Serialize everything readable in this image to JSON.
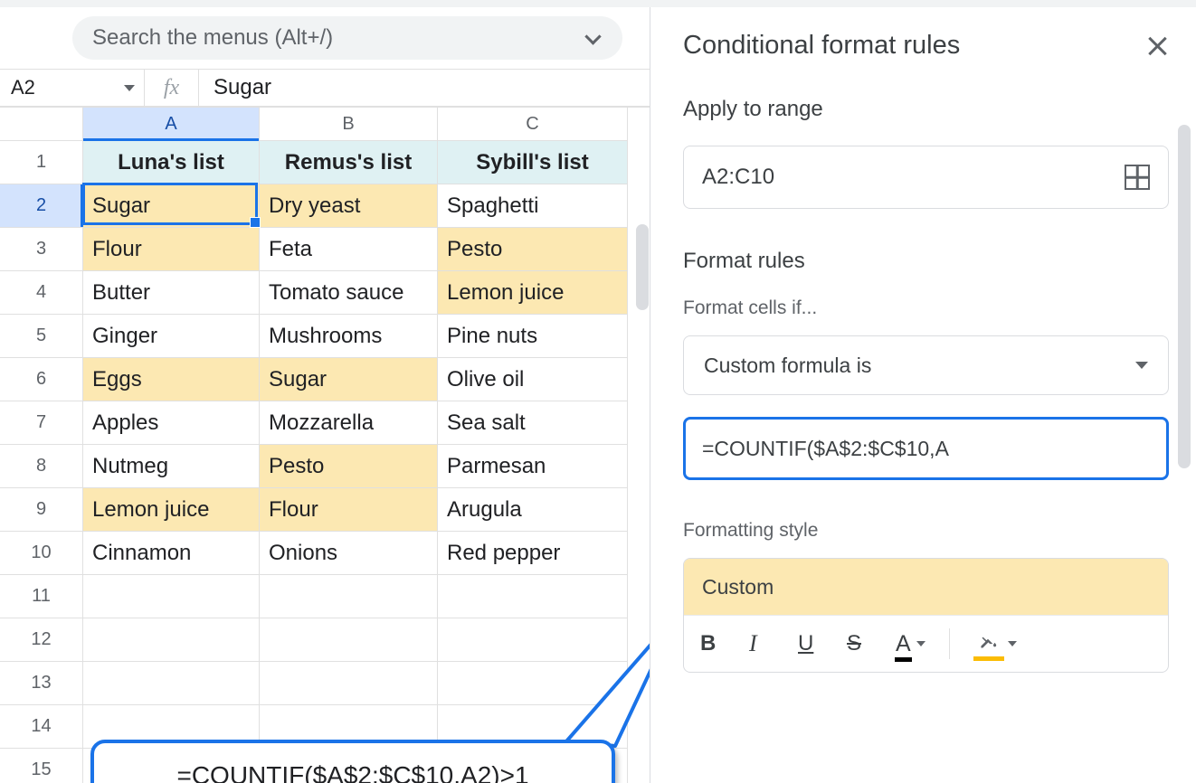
{
  "search": {
    "placeholder": "Search the menus (Alt+/)"
  },
  "name_box": "A2",
  "fx_label": "fx",
  "formula_bar": "Sugar",
  "columns": [
    "A",
    "B",
    "C"
  ],
  "selected_column_idx": 0,
  "selected_row_idx": 1,
  "row_count": 15,
  "header_row": [
    "Luna's list",
    "Remus's list",
    "Sybill's list"
  ],
  "data_rows": [
    [
      "Sugar",
      "Dry yeast",
      "Spaghetti"
    ],
    [
      "Flour",
      "Feta",
      "Pesto"
    ],
    [
      "Butter",
      "Tomato sauce",
      "Lemon juice"
    ],
    [
      "Ginger",
      "Mushrooms",
      "Pine nuts"
    ],
    [
      "Eggs",
      "Sugar",
      "Olive oil"
    ],
    [
      "Apples",
      "Mozzarella",
      "Sea salt"
    ],
    [
      "Nutmeg",
      "Pesto",
      "Parmesan"
    ],
    [
      "Lemon juice",
      "Flour",
      "Arugula"
    ],
    [
      "Cinnamon",
      "Onions",
      "Red pepper"
    ]
  ],
  "highlight_cells": [
    [
      0,
      0
    ],
    [
      0,
      1
    ],
    [
      0,
      2
    ],
    [
      0,
      4
    ],
    [
      1,
      0
    ],
    [
      1,
      2
    ],
    [
      1,
      3
    ],
    [
      2,
      0
    ],
    [
      0,
      7
    ],
    [
      1,
      5
    ],
    [
      1,
      7
    ],
    [
      2,
      2
    ],
    [
      2,
      3
    ]
  ],
  "highlight_map": {
    "0-0": true,
    "1-0": true,
    "0-1": true,
    "2-1": true,
    "2-2": true,
    "0-4": true,
    "1-4": true,
    "1-6": true,
    "0-7": true,
    "1-7": true
  },
  "highlight_color": "#fce8b2",
  "header_row_bg": "#d9ecee",
  "active_cell": {
    "col": 0,
    "row": 1
  },
  "callout_formula": "=COUNTIF($A$2:$C$10,A2)>1",
  "callout_border_color": "#1a73e8",
  "panel": {
    "title": "Conditional format rules",
    "apply_label": "Apply to range",
    "range_value": "A2:C10",
    "format_rules_label": "Format rules",
    "format_cells_if_label": "Format cells if...",
    "condition_value": "Custom formula is",
    "formula_value": "=COUNTIF($A$2:$C$10,A",
    "formatting_style_label": "Formatting style",
    "style_preview_label": "Custom",
    "style_preview_bg": "#fce8b2",
    "fill_underline_color": "#fbbc04",
    "toolbar": {
      "bold": "B",
      "italic": "I",
      "underline": "U",
      "strike": "S",
      "textcolor": "A"
    }
  }
}
